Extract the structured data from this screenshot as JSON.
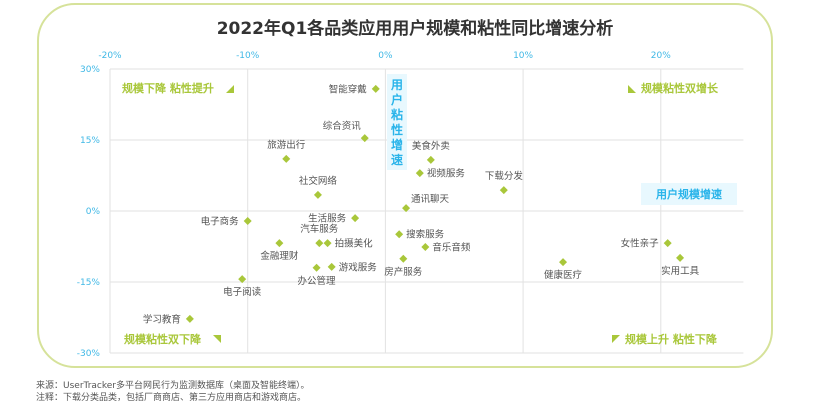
{
  "title": "2022年Q1各品类应用用户规模和粘性同比增速分析",
  "colors": {
    "frame": "#d6e29a",
    "marker": "#a9c73a",
    "quadrant_label": "#a9c73a",
    "axis_tick": "#3fb8e6",
    "axis_title": "#2ab4ea",
    "axis_title_bg": "#e8f8fe",
    "grid": "#e2e2e2",
    "point_label": "#555555"
  },
  "axes": {
    "x_title": "用户规模增速",
    "y_title": "用户粘性增速",
    "x_ticks": [
      "-20%",
      "-10%",
      "0%",
      "10%",
      "20%"
    ],
    "y_ticks": [
      "30%",
      "15%",
      "0%",
      "-15%",
      "-30%"
    ]
  },
  "quadrants": {
    "top_left": "规模下降 粘性提升",
    "top_right": "规模粘性双增长",
    "bottom_left": "规模粘性双下降",
    "bottom_right": "规模上升 粘性下降"
  },
  "footnotes": {
    "source": "来源：UserTracker多平台网民行为监测数据库（桌面及智能终端）。",
    "note": "注释：下载分类品类，包括厂商商店、第三方应用商店和游戏商店。"
  },
  "chart_data": {
    "type": "scatter",
    "title": "2022年Q1各品类应用用户规模和粘性同比增速分析",
    "xlabel": "用户规模增速",
    "ylabel": "用户粘性增速",
    "xlim": [
      -20,
      26
    ],
    "ylim": [
      -30,
      30
    ],
    "x_ticks": [
      -20,
      -10,
      0,
      10,
      20
    ],
    "y_ticks": [
      30,
      15,
      0,
      -15,
      -30
    ],
    "grid": true,
    "units": "%",
    "points": [
      {
        "label": "智能穿戴",
        "x": -0.7,
        "y": 25.8,
        "label_pos": "left"
      },
      {
        "label": "综合资讯",
        "x": -1.5,
        "y": 15.4,
        "label_pos": "top-left"
      },
      {
        "label": "旅游出行",
        "x": -7.2,
        "y": 11.0,
        "label_pos": "top"
      },
      {
        "label": "社交网络",
        "x": -4.9,
        "y": 3.4,
        "label_pos": "top"
      },
      {
        "label": "美食外卖",
        "x": 3.3,
        "y": 10.8,
        "label_pos": "top"
      },
      {
        "label": "视频服务",
        "x": 2.5,
        "y": 8.0,
        "label_pos": "right"
      },
      {
        "label": "下载分发",
        "x": 8.6,
        "y": 4.4,
        "label_pos": "top"
      },
      {
        "label": "通讯聊天",
        "x": 1.5,
        "y": 0.6,
        "label_pos": "top-right"
      },
      {
        "label": "电子商务",
        "x": -10.0,
        "y": -2.1,
        "label_pos": "left"
      },
      {
        "label": "生活服务",
        "x": -2.2,
        "y": -1.5,
        "label_pos": "left"
      },
      {
        "label": "汽车服务",
        "x": -4.8,
        "y": -6.8,
        "label_pos": "top"
      },
      {
        "label": "拍摄美化",
        "x": -4.2,
        "y": -6.8,
        "label_pos": "right"
      },
      {
        "label": "金融理财",
        "x": -7.7,
        "y": -6.8,
        "label_pos": "bottom"
      },
      {
        "label": "搜索服务",
        "x": 1.0,
        "y": -4.9,
        "label_pos": "right"
      },
      {
        "label": "音乐音频",
        "x": 2.9,
        "y": -7.6,
        "label_pos": "right"
      },
      {
        "label": "房产服务",
        "x": 1.3,
        "y": -10.1,
        "label_pos": "bottom"
      },
      {
        "label": "游戏服务",
        "x": -3.9,
        "y": -11.8,
        "label_pos": "right"
      },
      {
        "label": "办公管理",
        "x": -5.0,
        "y": -12.0,
        "label_pos": "bottom"
      },
      {
        "label": "电子阅读",
        "x": -10.4,
        "y": -14.4,
        "label_pos": "bottom"
      },
      {
        "label": "学习教育",
        "x": -14.2,
        "y": -22.8,
        "label_pos": "left"
      },
      {
        "label": "健康医疗",
        "x": 12.9,
        "y": -10.8,
        "label_pos": "bottom"
      },
      {
        "label": "女性亲子",
        "x": 20.5,
        "y": -6.8,
        "label_pos": "left"
      },
      {
        "label": "实用工具",
        "x": 21.4,
        "y": -9.9,
        "label_pos": "bottom"
      }
    ]
  }
}
